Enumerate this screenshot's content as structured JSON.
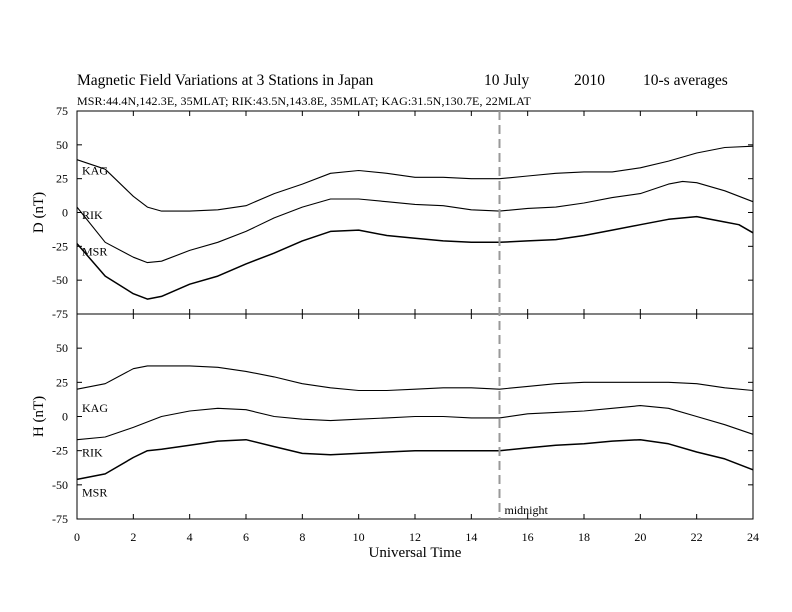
{
  "header": {
    "title_main": "Magnetic Field Variations at 3 Stations in Japan",
    "title_date": "10 July",
    "title_year": "2010",
    "title_avg": "10-s averages",
    "subtitle": "MSR:44.4N,142.3E, 35MLAT;  RIK:43.5N,143.8E, 35MLAT;  KAG:31.5N,130.7E, 22MLAT"
  },
  "chart_data": {
    "type": "line",
    "xlabel": "Universal Time",
    "xlim": [
      0,
      24
    ],
    "x_ticks": [
      "0",
      "2",
      "4",
      "6",
      "8",
      "10",
      "12",
      "14",
      "16",
      "18",
      "20",
      "22",
      "24"
    ],
    "annotation": {
      "text": "midnight",
      "x": 15
    },
    "panels": [
      {
        "ylabel": "D (nT)",
        "ylim": [
          -75,
          75
        ],
        "y_ticks": [
          "75",
          "50",
          "25",
          "0",
          "-25",
          "-50",
          "-75"
        ],
        "series": [
          {
            "name": "KAG",
            "x": [
              0,
              1,
              2,
              2.5,
              3,
              4,
              5,
              6,
              7,
              8,
              9,
              10,
              11,
              12,
              13,
              14,
              15,
              16,
              17,
              18,
              19,
              20,
              21,
              22,
              23,
              24
            ],
            "values": [
              39,
              32,
              12,
              4,
              1,
              1,
              2,
              5,
              14,
              21,
              29,
              31,
              29,
              26,
              26,
              25,
              25,
              27,
              29,
              30,
              30,
              33,
              38,
              44,
              48,
              49
            ]
          },
          {
            "name": "RIK",
            "x": [
              0,
              1,
              2,
              2.5,
              3,
              4,
              5,
              6,
              7,
              8,
              9,
              10,
              11,
              12,
              13,
              14,
              15,
              16,
              17,
              18,
              19,
              20,
              21,
              21.5,
              22,
              23,
              24
            ],
            "values": [
              4,
              -22,
              -33,
              -37,
              -36,
              -28,
              -22,
              -14,
              -4,
              4,
              10,
              10,
              8,
              6,
              5,
              2,
              1,
              3,
              4,
              7,
              11,
              14,
              21,
              23,
              22,
              16,
              8
            ]
          },
          {
            "name": "MSR",
            "x": [
              0,
              1,
              2,
              2.5,
              3,
              4,
              5,
              6,
              7,
              8,
              9,
              10,
              11,
              12,
              13,
              14,
              15,
              16,
              17,
              18,
              19,
              20,
              21,
              22,
              23,
              23.5,
              24
            ],
            "values": [
              -23,
              -47,
              -60,
              -64,
              -62,
              -53,
              -47,
              -38,
              -30,
              -21,
              -14,
              -13,
              -17,
              -19,
              -21,
              -22,
              -22,
              -21,
              -20,
              -17,
              -13,
              -9,
              -5,
              -3,
              -7,
              -9,
              -15
            ]
          }
        ]
      },
      {
        "ylabel": "H (nT)",
        "ylim": [
          -75,
          75
        ],
        "y_ticks": [
          "75",
          "50",
          "25",
          "0",
          "-25",
          "-50",
          "-75"
        ],
        "series": [
          {
            "name": "KAG",
            "x": [
              0,
              1,
              2,
              2.5,
              3,
              4,
              5,
              6,
              7,
              8,
              9,
              10,
              11,
              12,
              13,
              14,
              15,
              16,
              17,
              18,
              19,
              20,
              21,
              22,
              23,
              24
            ],
            "values": [
              20,
              24,
              35,
              37,
              37,
              37,
              36,
              33,
              29,
              24,
              21,
              19,
              19,
              20,
              21,
              21,
              20,
              22,
              24,
              25,
              25,
              25,
              25,
              24,
              21,
              19
            ]
          },
          {
            "name": "RIK",
            "x": [
              0,
              1,
              2,
              3,
              4,
              5,
              6,
              7,
              8,
              9,
              10,
              11,
              12,
              13,
              14,
              15,
              16,
              17,
              18,
              19,
              20,
              21,
              22,
              23,
              24
            ],
            "values": [
              -17,
              -15,
              -8,
              0,
              4,
              6,
              5,
              0,
              -2,
              -3,
              -2,
              -1,
              0,
              0,
              -1,
              -1,
              2,
              3,
              4,
              6,
              8,
              6,
              0,
              -6,
              -13
            ]
          },
          {
            "name": "MSR",
            "x": [
              0,
              1,
              2,
              2.5,
              3,
              4,
              5,
              6,
              7,
              8,
              9,
              10,
              11,
              12,
              13,
              14,
              15,
              16,
              17,
              18,
              19,
              20,
              21,
              22,
              23,
              24
            ],
            "values": [
              -46,
              -42,
              -30,
              -25,
              -24,
              -21,
              -18,
              -17,
              -22,
              -27,
              -28,
              -27,
              -26,
              -25,
              -25,
              -25,
              -25,
              -23,
              -21,
              -20,
              -18,
              -17,
              -20,
              -26,
              -31,
              -39
            ]
          }
        ]
      }
    ]
  }
}
